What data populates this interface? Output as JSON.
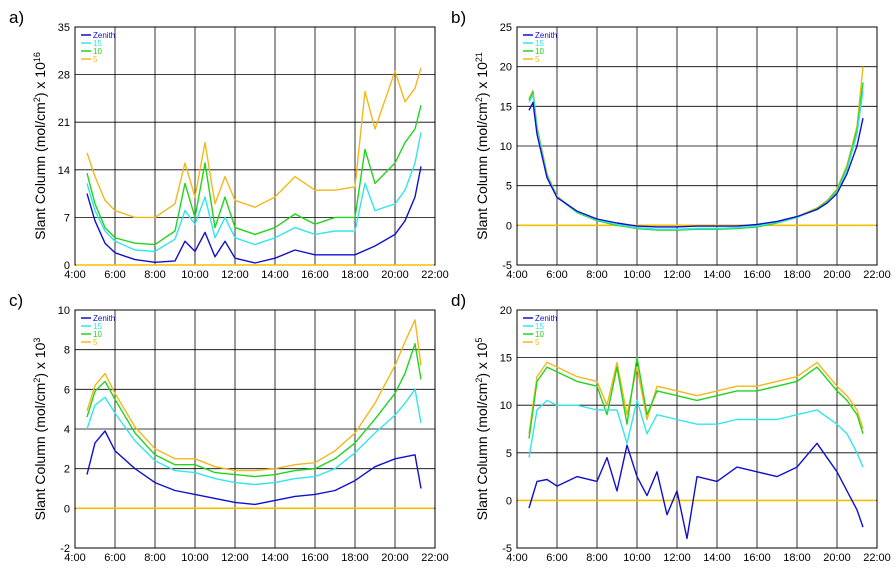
{
  "colors": {
    "zenith": "#1010cc",
    "s15": "#33e5ea",
    "s10": "#22d41e",
    "s5": "#f2b81a",
    "zero_line": "#f2c000",
    "grid": "#000000"
  },
  "chart_data": [
    {
      "panel": "a)",
      "type": "line",
      "ylabel_main": "Slant Column (mol/cm",
      "ylabel_sup1": "2",
      "ylabel_mid": ") x 10",
      "ylabel_sup2": "16",
      "xlim": [
        4,
        22
      ],
      "ylim": [
        0,
        35
      ],
      "xticks": [
        "4:00",
        "6:00",
        "8:00",
        "10:00",
        "12:00",
        "14:00",
        "16:00",
        "18:00",
        "20:00",
        "22:00"
      ],
      "yticks": [
        "0",
        "7",
        "14",
        "21",
        "28",
        "35"
      ],
      "ytick_values": [
        0,
        7,
        14,
        21,
        28,
        35
      ],
      "legend": [
        "Zenith",
        "15",
        "10",
        "5"
      ],
      "series": [
        {
          "name": "Zenith",
          "x": [
            4.6,
            5.0,
            5.5,
            6.0,
            7.0,
            8.0,
            9.0,
            9.5,
            10.0,
            10.5,
            11.0,
            11.5,
            12.0,
            13.0,
            14.0,
            15.0,
            16.0,
            17.0,
            18.0,
            19.0,
            20.0,
            20.5,
            21.0,
            21.3
          ],
          "y": [
            10.5,
            6.5,
            3.2,
            1.8,
            0.8,
            0.4,
            0.6,
            3.5,
            2.0,
            4.8,
            1.2,
            3.5,
            1.0,
            0.3,
            1.0,
            2.2,
            1.5,
            1.5,
            1.5,
            2.8,
            4.5,
            6.5,
            10.0,
            14.5
          ]
        },
        {
          "name": "15",
          "x": [
            4.6,
            5.0,
            5.5,
            6.0,
            7.0,
            8.0,
            9.0,
            9.5,
            10.0,
            10.5,
            11.0,
            11.5,
            12.0,
            13.0,
            14.0,
            15.0,
            16.0,
            17.0,
            18.0,
            18.5,
            19.0,
            20.0,
            20.5,
            21.0,
            21.3
          ],
          "y": [
            12.0,
            8.0,
            5.0,
            3.5,
            2.2,
            2.0,
            3.8,
            8.0,
            6.0,
            10.0,
            4.0,
            7.0,
            4.0,
            3.0,
            4.0,
            5.5,
            4.5,
            5.0,
            5.0,
            12.0,
            8.0,
            9.0,
            11.0,
            15.0,
            19.5
          ]
        },
        {
          "name": "10",
          "x": [
            4.6,
            5.0,
            5.5,
            6.0,
            7.0,
            8.0,
            9.0,
            9.5,
            10.0,
            10.5,
            11.0,
            11.5,
            12.0,
            13.0,
            14.0,
            15.0,
            16.0,
            17.0,
            18.0,
            18.5,
            19.0,
            20.0,
            20.5,
            21.0,
            21.3
          ],
          "y": [
            13.5,
            9.0,
            5.5,
            4.0,
            3.2,
            3.0,
            5.0,
            12.0,
            7.0,
            15.0,
            5.5,
            10.0,
            5.5,
            4.5,
            5.5,
            7.5,
            6.0,
            7.0,
            7.0,
            17.0,
            12.0,
            15.0,
            18.0,
            20.0,
            23.5
          ]
        },
        {
          "name": "5",
          "x": [
            4.6,
            5.0,
            5.5,
            6.0,
            7.0,
            8.0,
            9.0,
            9.5,
            10.0,
            10.5,
            11.0,
            11.5,
            12.0,
            13.0,
            14.0,
            15.0,
            16.0,
            17.0,
            18.0,
            18.5,
            19.0,
            20.0,
            20.5,
            21.0,
            21.3
          ],
          "y": [
            16.5,
            13.0,
            9.5,
            8.0,
            7.0,
            7.0,
            9.0,
            15.0,
            10.0,
            18.0,
            9.0,
            13.0,
            9.5,
            8.5,
            10.0,
            13.0,
            11.0,
            11.0,
            11.5,
            25.5,
            20.0,
            28.5,
            24.0,
            26.0,
            29.0
          ]
        }
      ]
    },
    {
      "panel": "b)",
      "type": "line",
      "ylabel_main": "Slant Column (mol/cm",
      "ylabel_sup1": "2",
      "ylabel_mid": ") x 10",
      "ylabel_sup2": "21",
      "xlim": [
        4,
        22
      ],
      "ylim": [
        -5,
        25
      ],
      "xticks": [
        "4:00",
        "6:00",
        "8:00",
        "10:00",
        "12:00",
        "14:00",
        "16:00",
        "18:00",
        "20:00",
        "22:00"
      ],
      "yticks": [
        "-5",
        "0",
        "5",
        "10",
        "15",
        "20",
        "25"
      ],
      "ytick_values": [
        -5,
        0,
        5,
        10,
        15,
        20,
        25
      ],
      "legend": [
        "Zenith",
        "15",
        "10",
        "5"
      ],
      "series": [
        {
          "name": "Zenith",
          "x": [
            4.6,
            4.8,
            5.0,
            5.5,
            6.0,
            7.0,
            8.0,
            9.0,
            10.0,
            11.0,
            12.0,
            13.0,
            14.0,
            15.0,
            16.0,
            17.0,
            18.0,
            19.0,
            19.5,
            20.0,
            20.5,
            21.0,
            21.3
          ],
          "y": [
            14.5,
            15.5,
            11.5,
            6.0,
            3.5,
            1.8,
            0.8,
            0.3,
            -0.1,
            -0.2,
            -0.2,
            -0.1,
            -0.1,
            -0.1,
            0.1,
            0.5,
            1.1,
            2.0,
            2.8,
            4.0,
            6.5,
            10.0,
            13.5
          ]
        },
        {
          "name": "15",
          "x": [
            4.6,
            4.8,
            5.0,
            5.5,
            6.0,
            7.0,
            8.0,
            9.0,
            10.0,
            11.0,
            12.0,
            13.0,
            14.0,
            15.0,
            16.0,
            17.0,
            18.0,
            19.0,
            19.5,
            20.0,
            20.5,
            21.0,
            21.3
          ],
          "y": [
            15.5,
            16.5,
            12.0,
            6.2,
            3.6,
            1.7,
            0.7,
            0.1,
            -0.3,
            -0.5,
            -0.5,
            -0.4,
            -0.4,
            -0.3,
            -0.1,
            0.4,
            1.0,
            2.0,
            2.9,
            4.2,
            7.0,
            11.5,
            17.0
          ]
        },
        {
          "name": "10",
          "x": [
            4.6,
            4.8,
            5.0,
            5.5,
            6.0,
            7.0,
            8.0,
            9.0,
            10.0,
            11.0,
            12.0,
            13.0,
            14.0,
            15.0,
            16.0,
            17.0,
            18.0,
            19.0,
            19.5,
            20.0,
            20.5,
            21.0,
            21.3
          ],
          "y": [
            15.8,
            16.8,
            12.2,
            6.3,
            3.6,
            1.6,
            0.6,
            0.0,
            -0.4,
            -0.6,
            -0.6,
            -0.5,
            -0.5,
            -0.4,
            -0.2,
            0.3,
            1.0,
            2.1,
            3.0,
            4.4,
            7.3,
            12.0,
            18.0
          ]
        },
        {
          "name": "5",
          "x": [
            4.6,
            4.8,
            5.0,
            5.5,
            6.0,
            7.0,
            8.0,
            9.0,
            10.0,
            11.0,
            12.0,
            13.0,
            14.0,
            15.0,
            16.0,
            17.0,
            18.0,
            19.0,
            19.5,
            20.0,
            20.5,
            21.0,
            21.3
          ],
          "y": [
            16.0,
            17.0,
            12.5,
            6.5,
            3.7,
            1.7,
            0.6,
            0.0,
            -0.3,
            -0.5,
            -0.5,
            -0.4,
            -0.4,
            -0.3,
            -0.1,
            0.4,
            1.1,
            2.2,
            3.1,
            4.6,
            7.6,
            12.5,
            20.0
          ]
        }
      ]
    },
    {
      "panel": "c)",
      "type": "line",
      "ylabel_main": "Slant Column (mol/cm",
      "ylabel_sup1": "2",
      "ylabel_mid": ") x 10",
      "ylabel_sup2": "3",
      "xlim": [
        4,
        22
      ],
      "ylim": [
        -2,
        10
      ],
      "xticks": [
        "4:00",
        "6:00",
        "8:00",
        "10:00",
        "12:00",
        "14:00",
        "16:00",
        "18:00",
        "20:00",
        "22:00"
      ],
      "yticks": [
        "-2",
        "0",
        "2",
        "4",
        "6",
        "8",
        "10"
      ],
      "ytick_values": [
        -2,
        0,
        2,
        4,
        6,
        8,
        10
      ],
      "legend": [
        "Zenith",
        "15",
        "10",
        "5"
      ],
      "series": [
        {
          "name": "Zenith",
          "x": [
            4.6,
            5.0,
            5.5,
            6.0,
            7.0,
            8.0,
            9.0,
            10.0,
            11.0,
            12.0,
            13.0,
            14.0,
            15.0,
            16.0,
            17.0,
            18.0,
            19.0,
            20.0,
            20.5,
            21.0,
            21.3
          ],
          "y": [
            1.7,
            3.3,
            3.9,
            2.9,
            2.0,
            1.3,
            0.9,
            0.7,
            0.5,
            0.3,
            0.2,
            0.4,
            0.6,
            0.7,
            0.9,
            1.4,
            2.1,
            2.5,
            2.6,
            2.7,
            1.0
          ]
        },
        {
          "name": "15",
          "x": [
            4.6,
            5.0,
            5.5,
            6.0,
            7.0,
            8.0,
            9.0,
            10.0,
            11.0,
            12.0,
            13.0,
            14.0,
            15.0,
            16.0,
            17.0,
            18.0,
            19.0,
            20.0,
            20.5,
            21.0,
            21.3
          ],
          "y": [
            4.0,
            5.2,
            5.6,
            4.8,
            3.4,
            2.4,
            1.9,
            1.8,
            1.5,
            1.3,
            1.2,
            1.3,
            1.5,
            1.6,
            2.0,
            2.8,
            3.8,
            4.7,
            5.3,
            6.0,
            4.3
          ]
        },
        {
          "name": "10",
          "x": [
            4.6,
            5.0,
            5.5,
            6.0,
            7.0,
            8.0,
            9.0,
            10.0,
            11.0,
            12.0,
            13.0,
            14.0,
            15.0,
            16.0,
            17.0,
            18.0,
            19.0,
            20.0,
            20.5,
            21.0,
            21.3
          ],
          "y": [
            4.6,
            5.9,
            6.4,
            5.5,
            3.8,
            2.7,
            2.2,
            2.2,
            1.8,
            1.7,
            1.6,
            1.7,
            1.9,
            2.0,
            2.5,
            3.3,
            4.5,
            5.8,
            6.8,
            8.3,
            6.5
          ]
        },
        {
          "name": "5",
          "x": [
            4.6,
            5.0,
            5.5,
            6.0,
            7.0,
            8.0,
            9.0,
            10.0,
            11.0,
            12.0,
            13.0,
            14.0,
            15.0,
            16.0,
            17.0,
            18.0,
            19.0,
            20.0,
            20.5,
            21.0,
            21.3
          ],
          "y": [
            4.9,
            6.2,
            6.8,
            5.8,
            4.1,
            3.0,
            2.5,
            2.5,
            2.1,
            1.9,
            1.9,
            2.0,
            2.2,
            2.3,
            2.9,
            3.8,
            5.3,
            7.2,
            8.4,
            9.5,
            7.2
          ]
        }
      ]
    },
    {
      "panel": "d)",
      "type": "line",
      "ylabel_main": "Slant Column (mol/cm",
      "ylabel_sup1": "2",
      "ylabel_mid": ") x 10",
      "ylabel_sup2": "5",
      "xlim": [
        4,
        22
      ],
      "ylim": [
        -5,
        20
      ],
      "xticks": [
        "4:00",
        "6:00",
        "8:00",
        "10:00",
        "12:00",
        "14:00",
        "16:00",
        "18:00",
        "20:00",
        "22:00"
      ],
      "yticks": [
        "-5",
        "0",
        "5",
        "10",
        "15",
        "20"
      ],
      "ytick_values": [
        -5,
        0,
        5,
        10,
        15,
        20
      ],
      "legend": [
        "Zenith",
        "15",
        "10",
        "5"
      ],
      "series": [
        {
          "name": "Zenith",
          "x": [
            4.6,
            5.0,
            5.5,
            6.0,
            7.0,
            8.0,
            8.5,
            9.0,
            9.5,
            10.0,
            10.5,
            11.0,
            11.5,
            12.0,
            12.5,
            13.0,
            14.0,
            15.0,
            16.0,
            17.0,
            18.0,
            19.0,
            20.0,
            20.5,
            21.0,
            21.3
          ],
          "y": [
            -0.8,
            2.0,
            2.2,
            1.5,
            2.5,
            2.0,
            4.5,
            1.0,
            5.8,
            2.5,
            0.5,
            3.0,
            -1.5,
            1.0,
            -4.0,
            2.5,
            2.0,
            3.5,
            3.0,
            2.5,
            3.5,
            6.0,
            3.0,
            1.0,
            -1.0,
            -2.8
          ]
        },
        {
          "name": "15",
          "x": [
            4.6,
            5.0,
            5.5,
            6.0,
            7.0,
            8.0,
            9.0,
            9.5,
            10.0,
            10.5,
            11.0,
            12.0,
            13.0,
            14.0,
            15.0,
            16.0,
            17.0,
            18.0,
            19.0,
            20.0,
            20.5,
            21.0,
            21.3
          ],
          "y": [
            4.5,
            9.5,
            10.5,
            10.0,
            10.0,
            9.5,
            9.5,
            6.0,
            10.5,
            7.0,
            9.0,
            8.5,
            8.0,
            8.0,
            8.5,
            8.5,
            8.5,
            9.0,
            9.5,
            8.0,
            7.0,
            5.0,
            3.5
          ]
        },
        {
          "name": "10",
          "x": [
            4.6,
            5.0,
            5.5,
            6.0,
            7.0,
            8.0,
            8.5,
            9.0,
            9.5,
            10.0,
            10.5,
            11.0,
            12.0,
            13.0,
            14.0,
            15.0,
            16.0,
            17.0,
            18.0,
            19.0,
            20.0,
            20.5,
            21.0,
            21.3
          ],
          "y": [
            6.5,
            12.5,
            14.0,
            13.5,
            12.5,
            12.0,
            9.0,
            14.0,
            8.0,
            15.0,
            9.0,
            11.5,
            11.0,
            10.5,
            11.0,
            11.5,
            11.5,
            12.0,
            12.5,
            14.0,
            11.5,
            10.5,
            9.0,
            7.0
          ]
        },
        {
          "name": "5",
          "x": [
            4.6,
            5.0,
            5.5,
            6.0,
            7.0,
            8.0,
            8.5,
            9.0,
            9.5,
            10.0,
            10.5,
            11.0,
            12.0,
            13.0,
            14.0,
            15.0,
            16.0,
            17.0,
            18.0,
            19.0,
            20.0,
            20.5,
            21.0,
            21.3
          ],
          "y": [
            7.0,
            13.0,
            14.5,
            14.0,
            13.0,
            12.5,
            10.0,
            14.5,
            9.0,
            14.0,
            8.5,
            12.0,
            11.5,
            11.0,
            11.5,
            12.0,
            12.0,
            12.5,
            13.0,
            14.5,
            12.0,
            11.0,
            9.5,
            7.5
          ]
        }
      ]
    }
  ]
}
